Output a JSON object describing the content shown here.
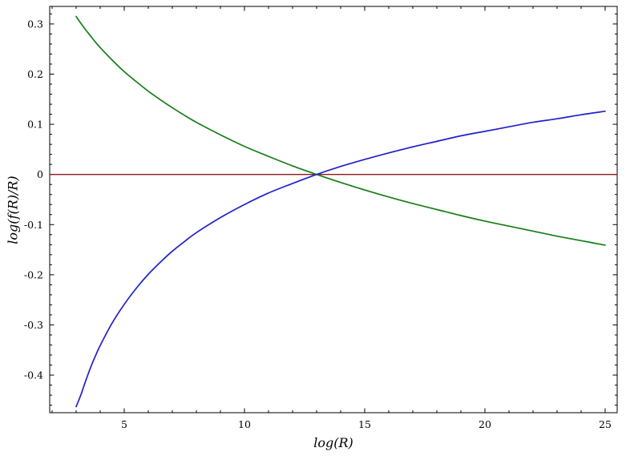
{
  "chart_data": {
    "type": "line",
    "title": "",
    "xlabel": "log(R)",
    "ylabel": "log(f(R)/R)",
    "xlim": [
      1.9,
      25.5
    ],
    "ylim": [
      -0.475,
      0.335
    ],
    "grid": false,
    "legend": "none",
    "frame_color": "#000000",
    "background_color": "#ffffff",
    "x_ticks": [
      {
        "v": 5,
        "label": "5"
      },
      {
        "v": 10,
        "label": "10"
      },
      {
        "v": 15,
        "label": "15"
      },
      {
        "v": 20,
        "label": "20"
      },
      {
        "v": 25,
        "label": "25"
      }
    ],
    "y_ticks": [
      {
        "v": -0.4,
        "label": "-0.4"
      },
      {
        "v": -0.3,
        "label": "-0.3"
      },
      {
        "v": -0.2,
        "label": "-0.2"
      },
      {
        "v": -0.1,
        "label": "-0.1"
      },
      {
        "v": 0,
        "label": "0"
      },
      {
        "v": 0.1,
        "label": "0.1"
      },
      {
        "v": 0.2,
        "label": "0.2"
      },
      {
        "v": 0.3,
        "label": "0.3"
      }
    ],
    "x_minor_step": 1,
    "y_minor_step": 0.02,
    "series": [
      {
        "name": "zero-line",
        "color": "#8b1a1a",
        "width": 1.3,
        "x": [
          1.9,
          25.5
        ],
        "y": [
          0,
          0
        ]
      },
      {
        "name": "decreasing-curve",
        "color": "#177d17",
        "width": 1.7,
        "x": [
          3,
          3.2,
          3.4,
          3.6,
          3.8,
          4,
          4.5,
          5,
          5.5,
          6,
          6.5,
          7,
          7.5,
          8,
          9,
          10,
          11,
          12,
          13,
          14,
          15,
          16,
          17,
          18,
          19,
          20,
          21,
          22,
          23,
          24,
          25
        ],
        "y": [
          0.315,
          0.301,
          0.288,
          0.276,
          0.264,
          0.253,
          0.228,
          0.205,
          0.185,
          0.166,
          0.149,
          0.133,
          0.118,
          0.104,
          0.079,
          0.056,
          0.036,
          0.017,
          0,
          -0.016,
          -0.031,
          -0.045,
          -0.058,
          -0.07,
          -0.082,
          -0.093,
          -0.103,
          -0.113,
          -0.123,
          -0.132,
          -0.141
        ]
      },
      {
        "name": "increasing-curve",
        "color": "#2121cc",
        "width": 1.7,
        "x": [
          3,
          3.2,
          3.4,
          3.6,
          3.8,
          4,
          4.5,
          5,
          5.5,
          6,
          6.5,
          7,
          7.5,
          8,
          9,
          10,
          11,
          12,
          13,
          14,
          15,
          16,
          17,
          18,
          19,
          20,
          21,
          22,
          23,
          24,
          25
        ],
        "y": [
          -0.463,
          -0.439,
          -0.411,
          -0.385,
          -0.362,
          -0.341,
          -0.296,
          -0.259,
          -0.227,
          -0.199,
          -0.175,
          -0.153,
          -0.134,
          -0.116,
          -0.086,
          -0.06,
          -0.037,
          -0.018,
          0,
          0.016,
          0.03,
          0.043,
          0.055,
          0.066,
          0.077,
          0.086,
          0.095,
          0.104,
          0.111,
          0.119,
          0.126
        ]
      }
    ]
  }
}
